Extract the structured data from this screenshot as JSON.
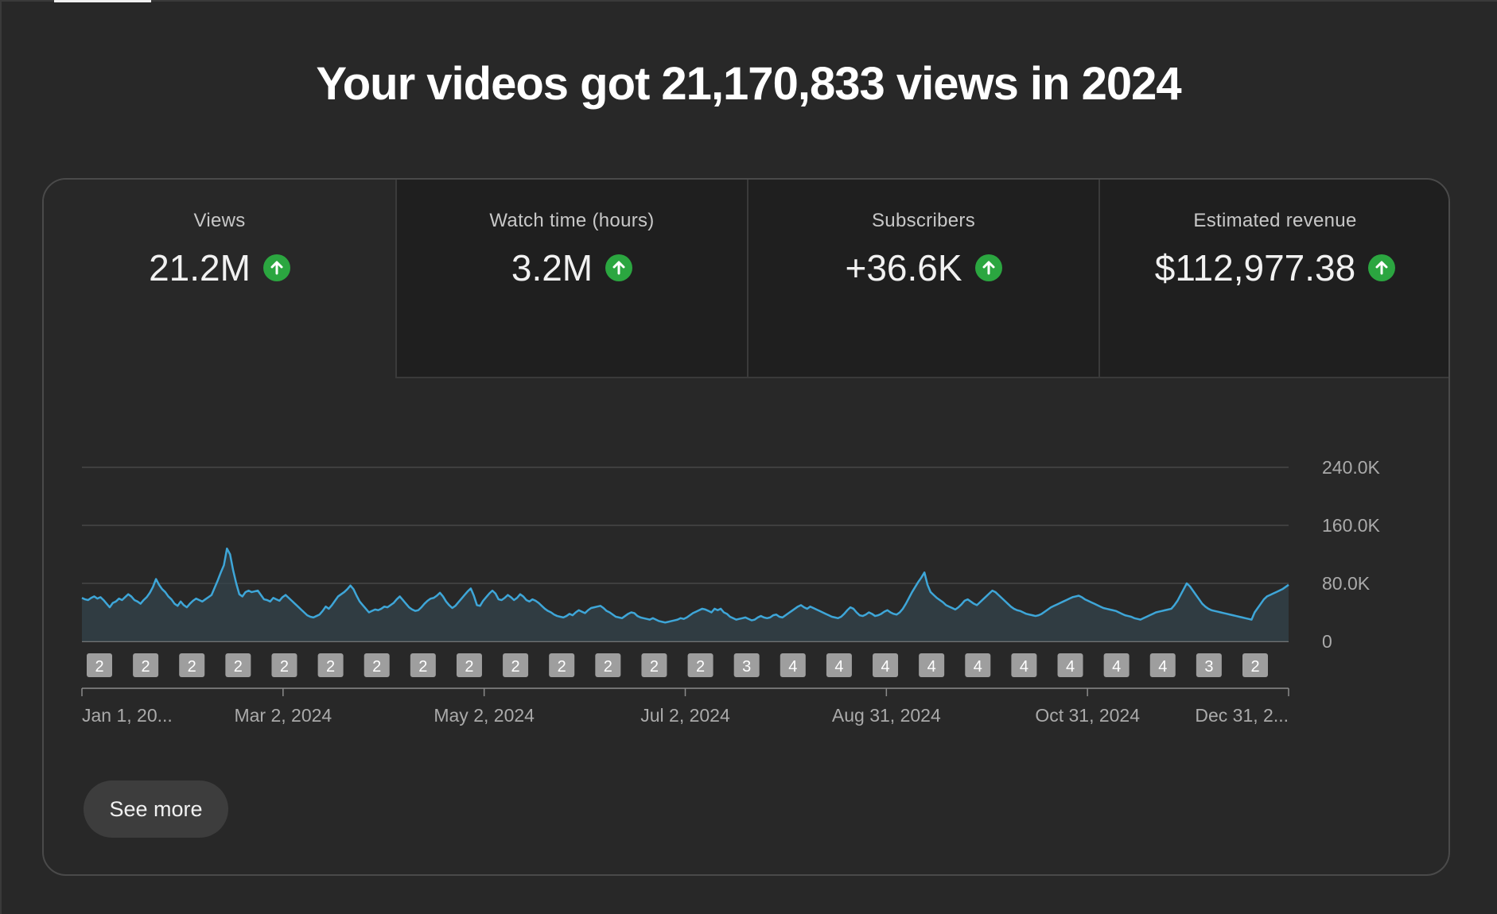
{
  "headline": "Your videos got 21,170,833 views in 2024",
  "colors": {
    "background": "#282828",
    "line": "#3ea6d8",
    "up": "#2ba640"
  },
  "metrics": [
    {
      "label": "Views",
      "value": "21.2M",
      "trend_icon": "arrow-up-icon",
      "selected": true
    },
    {
      "label": "Watch time (hours)",
      "value": "3.2M",
      "trend_icon": "arrow-up-icon",
      "selected": false
    },
    {
      "label": "Subscribers",
      "value": "+36.6K",
      "trend_icon": "arrow-up-icon",
      "selected": false
    },
    {
      "label": "Estimated revenue",
      "value": "$112,977.38",
      "trend_icon": "arrow-up-icon",
      "selected": false
    }
  ],
  "see_more_label": "See more",
  "chart_data": {
    "type": "area",
    "series": [
      {
        "values": [
          60000,
          58000,
          57000,
          60000,
          62000,
          59000,
          61000,
          57000,
          52000,
          47000,
          53000,
          55000,
          59000,
          57000,
          61000,
          65000,
          62000,
          57000,
          55000,
          52000,
          57000,
          61000,
          67000,
          75000,
          86000,
          78000,
          72000,
          68000,
          62000,
          58000,
          52000,
          49000,
          55000,
          50000,
          47000,
          52000,
          56000,
          59000,
          57000,
          55000,
          58000,
          61000,
          64000,
          74000,
          84000,
          95000,
          105000,
          128000,
          120000,
          98000,
          80000,
          65000,
          62000,
          68000,
          70000,
          68000,
          69000,
          70000,
          64000,
          58000,
          57000,
          55000,
          60000,
          58000,
          56000,
          61000,
          64000,
          60000,
          56000,
          52000,
          48000,
          44000,
          40000,
          36000,
          34000,
          33000,
          35000,
          37000,
          42000,
          48000,
          45000,
          50000,
          56000,
          62000,
          65000,
          68000,
          72000,
          77000,
          72000,
          63000,
          55000,
          50000,
          45000,
          40000,
          42000,
          44000,
          43000,
          45000,
          48000,
          47000,
          50000,
          53000,
          58000,
          62000,
          57000,
          52000,
          47000,
          44000,
          42000,
          43000,
          47000,
          52000,
          56000,
          59000,
          60000,
          63000,
          67000,
          62000,
          55000,
          50000,
          46000,
          49000,
          54000,
          59000,
          64000,
          69000,
          73000,
          63000,
          50000,
          49000,
          56000,
          61000,
          66000,
          70000,
          66000,
          58000,
          57000,
          60000,
          64000,
          61000,
          57000,
          60000,
          65000,
          62000,
          57000,
          55000,
          58000,
          56000,
          53000,
          49000,
          45000,
          42000,
          40000,
          37000,
          35000,
          34000,
          33000,
          35000,
          38000,
          36000,
          40000,
          43000,
          41000,
          39000,
          43000,
          46000,
          47000,
          48000,
          49000,
          46000,
          42000,
          40000,
          37000,
          34000,
          33000,
          32000,
          35000,
          38000,
          40000,
          39000,
          35000,
          33000,
          32000,
          31000,
          30000,
          32000,
          30000,
          28000,
          27000,
          26000,
          27000,
          28000,
          29000,
          30000,
          32000,
          31000,
          33000,
          36000,
          39000,
          41000,
          43000,
          45000,
          44000,
          42000,
          40000,
          45000,
          43000,
          45000,
          40000,
          38000,
          34000,
          32000,
          30000,
          31000,
          32000,
          33000,
          31000,
          29000,
          30000,
          33000,
          35000,
          33000,
          32000,
          33000,
          36000,
          37000,
          34000,
          33000,
          36000,
          39000,
          42000,
          45000,
          48000,
          50000,
          47000,
          45000,
          48000,
          46000,
          44000,
          42000,
          40000,
          38000,
          36000,
          34000,
          33000,
          32000,
          34000,
          38000,
          43000,
          47000,
          45000,
          40000,
          36000,
          35000,
          37000,
          40000,
          38000,
          35000,
          36000,
          38000,
          41000,
          43000,
          40000,
          38000,
          37000,
          40000,
          45000,
          52000,
          60000,
          68000,
          75000,
          82000,
          88000,
          95000,
          78000,
          68000,
          64000,
          60000,
          57000,
          54000,
          50000,
          48000,
          46000,
          44000,
          47000,
          51000,
          56000,
          58000,
          55000,
          52000,
          50000,
          54000,
          58000,
          62000,
          66000,
          70000,
          68000,
          64000,
          60000,
          56000,
          52000,
          48000,
          45000,
          43000,
          42000,
          40000,
          38000,
          37000,
          36000,
          35000,
          36000,
          38000,
          41000,
          44000,
          47000,
          49000,
          51000,
          53000,
          55000,
          57000,
          59000,
          61000,
          62000,
          63000,
          61000,
          58000,
          56000,
          54000,
          52000,
          50000,
          48000,
          46000,
          45000,
          44000,
          43000,
          42000,
          40000,
          38000,
          36000,
          35000,
          34000,
          32000,
          31000,
          30000,
          32000,
          34000,
          36000,
          38000,
          40000,
          41000,
          42000,
          43000,
          44000,
          45000,
          50000,
          56000,
          64000,
          72000,
          80000,
          76000,
          70000,
          64000,
          58000,
          52000,
          48000,
          45000,
          43000,
          42000,
          41000,
          40000,
          39000,
          38000,
          37000,
          36000,
          35000,
          34000,
          33000,
          32000,
          31000,
          30000,
          40000,
          46000,
          52000,
          58000,
          62000,
          64000,
          66000,
          68000,
          70000,
          72000,
          75000,
          78000
        ]
      }
    ],
    "x_tick_labels": [
      "Jan 1, 20...",
      "Mar 2, 2024",
      "May 2, 2024",
      "Jul 2, 2024",
      "Aug 31, 2024",
      "Oct 31, 2024",
      "Dec 31, 2..."
    ],
    "y_tick_labels": [
      "240.0K",
      "160.0K",
      "80.0K",
      "0"
    ],
    "ylim": [
      0,
      240000
    ],
    "grid": true,
    "markers": [
      "2",
      "2",
      "2",
      "2",
      "2",
      "2",
      "2",
      "2",
      "2",
      "2",
      "2",
      "2",
      "2",
      "2",
      "3",
      "4",
      "4",
      "4",
      "4",
      "4",
      "4",
      "4",
      "4",
      "4",
      "3",
      "2"
    ]
  }
}
